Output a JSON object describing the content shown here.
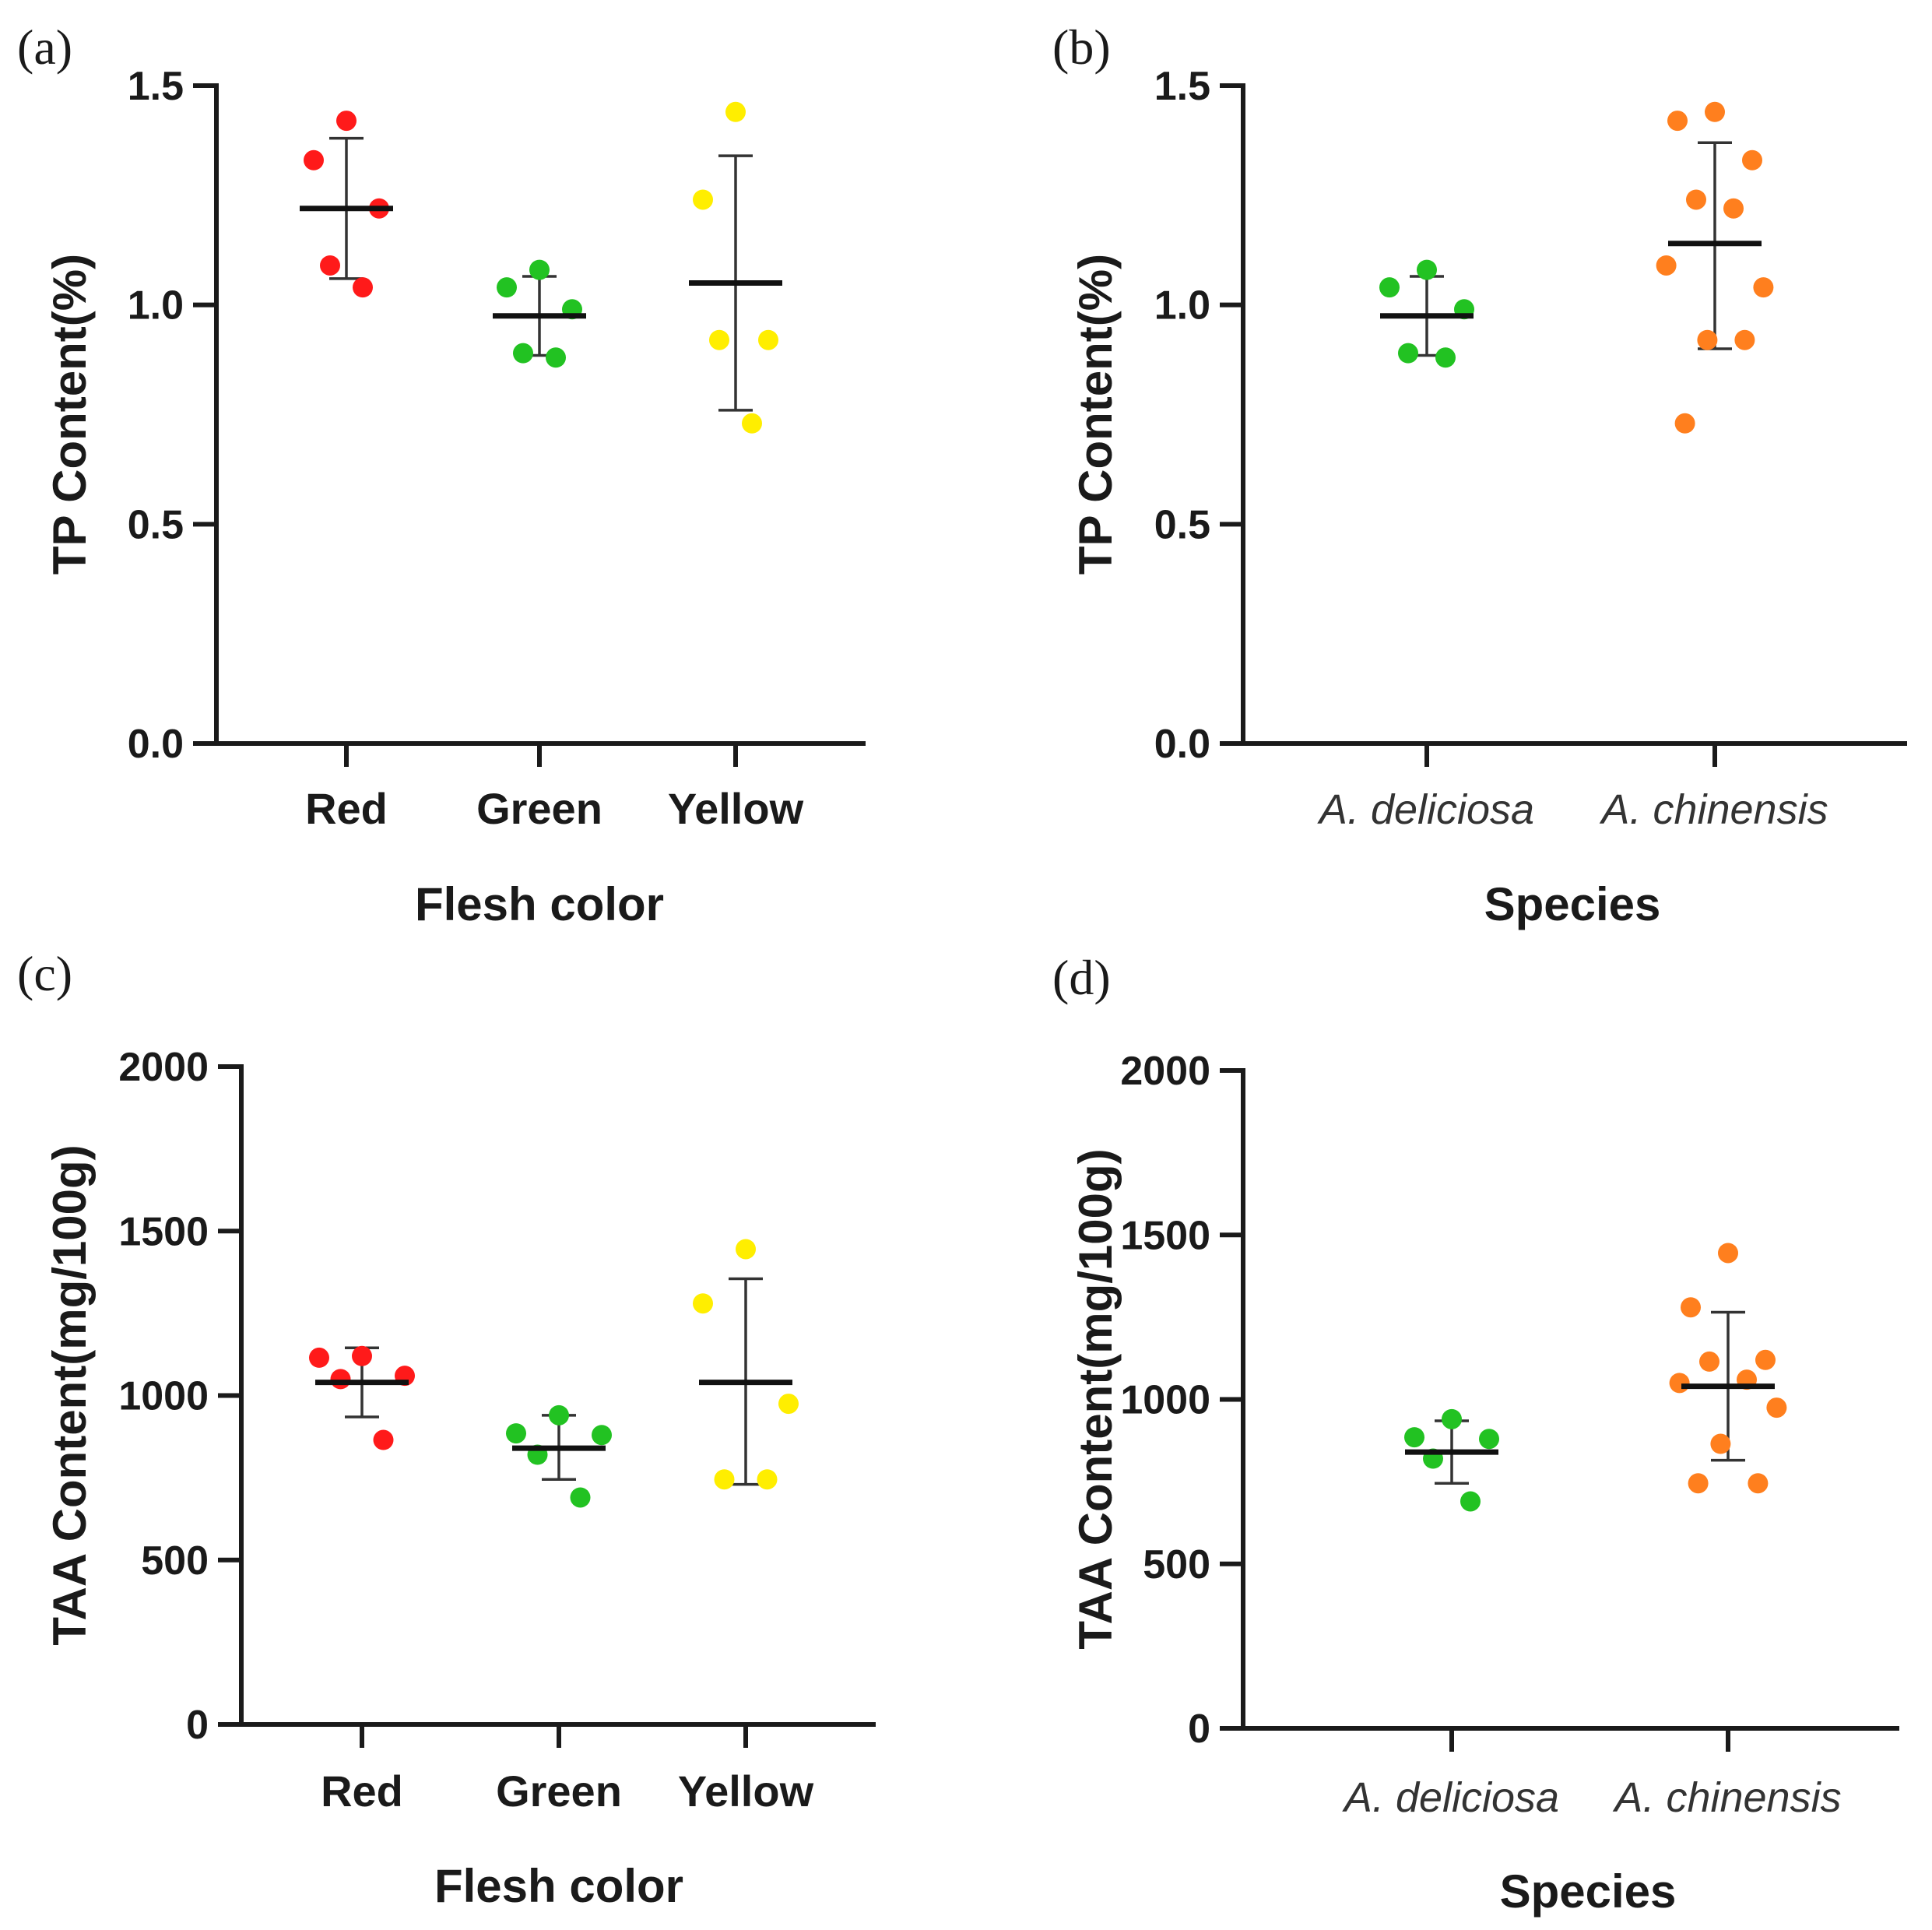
{
  "chart_data": [
    {
      "panel": "(a)",
      "type": "scatter",
      "xlabel": "Flesh color",
      "ylabel": "TP Content(%)",
      "ylim": [
        0,
        1.5
      ],
      "yticks": [
        "0.0",
        "0.5",
        "1.0",
        "1.5"
      ],
      "yticks_values": [
        0,
        0.5,
        1.0,
        1.5
      ],
      "italic_categories": false,
      "groups": [
        {
          "name": "Red",
          "color": "#ff1a1a",
          "mean": 1.22,
          "sd_upper": 1.38,
          "sd_lower": 1.06,
          "values": [
            1.42,
            1.33,
            1.22,
            1.09,
            1.04
          ]
        },
        {
          "name": "Green",
          "color": "#22c222",
          "mean": 0.975,
          "sd_upper": 1.065,
          "sd_lower": 0.885,
          "values": [
            1.08,
            1.04,
            0.99,
            0.89,
            0.88
          ]
        },
        {
          "name": "Yellow",
          "color": "#ffee00",
          "mean": 1.05,
          "sd_upper": 1.34,
          "sd_lower": 0.76,
          "values": [
            1.44,
            1.24,
            0.92,
            0.92,
            0.73
          ]
        }
      ]
    },
    {
      "panel": "(b)",
      "type": "scatter",
      "xlabel": "Species",
      "ylabel": "TP Content(%)",
      "ylim": [
        0,
        1.5
      ],
      "yticks": [
        "0.0",
        "0.5",
        "1.0",
        "1.5"
      ],
      "yticks_values": [
        0,
        0.5,
        1.0,
        1.5
      ],
      "italic_categories": true,
      "groups": [
        {
          "name": "A. deliciosa",
          "color": "#22c222",
          "mean": 0.975,
          "sd_upper": 1.065,
          "sd_lower": 0.885,
          "values": [
            1.08,
            1.04,
            0.99,
            0.89,
            0.88
          ]
        },
        {
          "name": "A. chinensis",
          "color": "#ff7f1e",
          "mean": 1.14,
          "sd_upper": 1.37,
          "sd_lower": 0.9,
          "values": [
            1.44,
            1.42,
            1.33,
            1.24,
            1.22,
            1.09,
            1.04,
            0.92,
            0.92,
            0.73
          ]
        }
      ]
    },
    {
      "panel": "(c)",
      "type": "scatter",
      "xlabel": "Flesh color",
      "ylabel": "TAA Content(mg/100g)",
      "ylim": [
        0,
        2000
      ],
      "yticks": [
        "0",
        "500",
        "1000",
        "1500",
        "2000"
      ],
      "yticks_values": [
        0,
        500,
        1000,
        1500,
        2000
      ],
      "italic_categories": false,
      "groups": [
        {
          "name": "Red",
          "color": "#ff1a1a",
          "mean": 1040,
          "sd_upper": 1145,
          "sd_lower": 935,
          "values": [
            1120,
            1115,
            1060,
            1050,
            865
          ]
        },
        {
          "name": "Green",
          "color": "#22c222",
          "mean": 840,
          "sd_upper": 940,
          "sd_lower": 745,
          "values": [
            940,
            885,
            880,
            820,
            690
          ]
        },
        {
          "name": "Yellow",
          "color": "#ffee00",
          "mean": 1040,
          "sd_upper": 1355,
          "sd_lower": 730,
          "values": [
            1445,
            1280,
            975,
            745,
            745
          ]
        }
      ]
    },
    {
      "panel": "(d)",
      "type": "scatter",
      "xlabel": "Species",
      "ylabel": "TAA Content(mg/100g)",
      "ylim": [
        0,
        2000
      ],
      "yticks": [
        "0",
        "500",
        "1000",
        "1500",
        "2000"
      ],
      "yticks_values": [
        0,
        500,
        1000,
        1500,
        2000
      ],
      "italic_categories": true,
      "groups": [
        {
          "name": "A. deliciosa",
          "color": "#22c222",
          "mean": 840,
          "sd_upper": 935,
          "sd_lower": 745,
          "values": [
            940,
            885,
            880,
            820,
            690
          ]
        },
        {
          "name": "A. chinensis",
          "color": "#ff7f1e",
          "mean": 1040,
          "sd_upper": 1265,
          "sd_lower": 815,
          "values": [
            1445,
            1280,
            1120,
            1115,
            1060,
            1050,
            975,
            865,
            745,
            745
          ]
        }
      ]
    }
  ]
}
